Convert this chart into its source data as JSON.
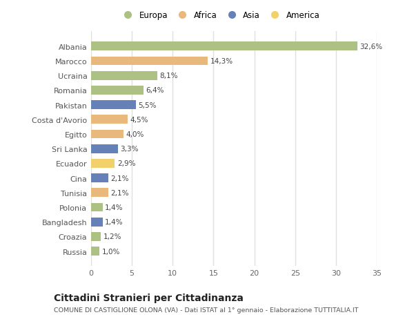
{
  "countries": [
    "Albania",
    "Marocco",
    "Ucraina",
    "Romania",
    "Pakistan",
    "Costa d'Avorio",
    "Egitto",
    "Sri Lanka",
    "Ecuador",
    "Cina",
    "Tunisia",
    "Polonia",
    "Bangladesh",
    "Croazia",
    "Russia"
  ],
  "values": [
    32.6,
    14.3,
    8.1,
    6.4,
    5.5,
    4.5,
    4.0,
    3.3,
    2.9,
    2.1,
    2.1,
    1.4,
    1.4,
    1.2,
    1.0
  ],
  "labels": [
    "32,6%",
    "14,3%",
    "8,1%",
    "6,4%",
    "5,5%",
    "4,5%",
    "4,0%",
    "3,3%",
    "2,9%",
    "2,1%",
    "2,1%",
    "1,4%",
    "1,4%",
    "1,2%",
    "1,0%"
  ],
  "continents": [
    "Europa",
    "Africa",
    "Europa",
    "Europa",
    "Asia",
    "Africa",
    "Africa",
    "Asia",
    "America",
    "Asia",
    "Africa",
    "Europa",
    "Asia",
    "Europa",
    "Europa"
  ],
  "colors": {
    "Europa": "#adc185",
    "Africa": "#e8b87d",
    "Asia": "#6681b8",
    "America": "#f2d06b"
  },
  "background_color": "#ffffff",
  "plot_bg_color": "#ffffff",
  "grid_color": "#e0e0e0",
  "title": "Cittadini Stranieri per Cittadinanza",
  "subtitle": "COMUNE DI CASTIGLIONE OLONA (VA) - Dati ISTAT al 1° gennaio - Elaborazione TUTTITALIA.IT",
  "xlim": [
    0,
    35
  ],
  "xticks": [
    0,
    5,
    10,
    15,
    20,
    25,
    30,
    35
  ],
  "legend_order": [
    "Europa",
    "Africa",
    "Asia",
    "America"
  ]
}
